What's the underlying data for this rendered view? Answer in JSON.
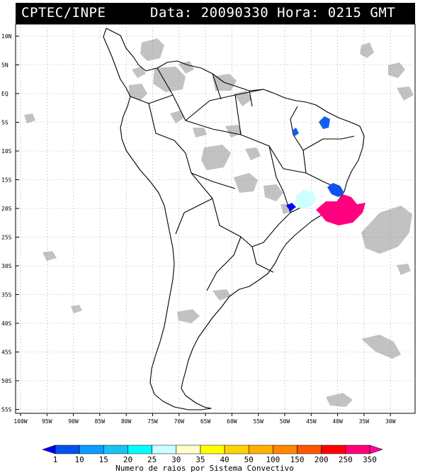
{
  "header": {
    "agency": "CPTEC/INPE",
    "datetime": "Data: 20090330 Hora: 0215 GMT"
  },
  "map": {
    "lat_ticks": [
      "10N",
      "5N",
      "EQ",
      "5S",
      "10S",
      "15S",
      "20S",
      "25S",
      "30S",
      "35S",
      "40S",
      "45S",
      "50S",
      "55S"
    ],
    "lon_ticks": [
      "100W",
      "95W",
      "90W",
      "85W",
      "80W",
      "75W",
      "70W",
      "65W",
      "60W",
      "55W",
      "50W",
      "45W",
      "40W",
      "35W",
      "30W"
    ],
    "colors": {
      "land_outline": "#000000",
      "cloud": "#bdbdbd",
      "grid": "#8a8a8a"
    }
  },
  "colorbar": {
    "labels": [
      "1",
      "10",
      "15",
      "20",
      "25",
      "30",
      "35",
      "40",
      "50",
      "100",
      "150",
      "200",
      "250",
      "350"
    ],
    "colors": [
      "#0000ff",
      "#0050ee",
      "#0a9cff",
      "#17c3f5",
      "#00ffff",
      "#ccffff",
      "#ffffcc",
      "#ffff00",
      "#ffd400",
      "#ffb000",
      "#ff8800",
      "#ff5500",
      "#ff0000",
      "#ff0077",
      "#ff00a0"
    ],
    "title": "Numero de raios por Sistema Convectivo"
  }
}
